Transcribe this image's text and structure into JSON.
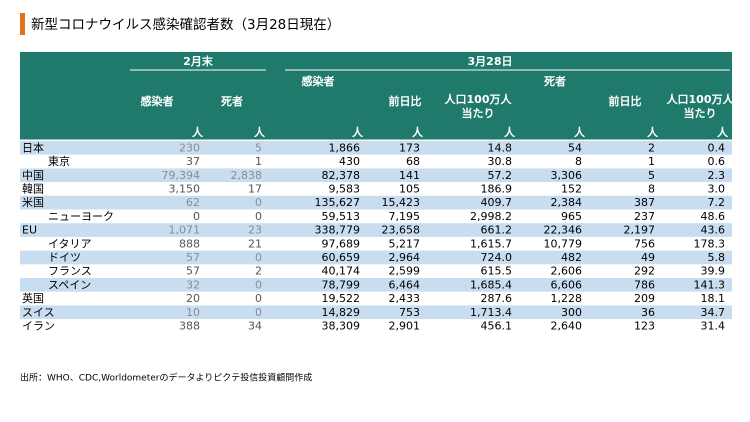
{
  "title": "新型コロナウイルス感染確認者数（3月28日現在）",
  "table": {
    "groups": [
      "2月末",
      "3月28日"
    ],
    "columns": [
      [
        "感染者"
      ],
      [
        "死者"
      ],
      [
        "感染者"
      ],
      [
        "前日比"
      ],
      [
        "人口100万人",
        "当たり"
      ],
      [
        "死者"
      ],
      [
        "前日比"
      ],
      [
        "人口100万人",
        "当たり"
      ]
    ],
    "unit": "人",
    "rows": [
      {
        "name": "日本",
        "cells": [
          "230",
          "5",
          "1,866",
          "173",
          "14.8",
          "54",
          "2",
          "0.4"
        ],
        "children": [
          {
            "name": "東京",
            "cells": [
              "37",
              "1",
              "430",
              "68",
              "30.8",
              "8",
              "1",
              "0.6"
            ]
          }
        ]
      },
      {
        "name": "中国",
        "cells": [
          "79,394",
          "2,838",
          "82,378",
          "141",
          "57.2",
          "3,306",
          "5",
          "2.3"
        ]
      },
      {
        "name": "韓国",
        "cells": [
          "3,150",
          "17",
          "9,583",
          "105",
          "186.9",
          "152",
          "8",
          "3.0"
        ]
      },
      {
        "name": "米国",
        "cells": [
          "62",
          "0",
          "135,627",
          "15,423",
          "409.7",
          "2,384",
          "387",
          "7.2"
        ],
        "children": [
          {
            "name": "ニューヨーク",
            "cells": [
              "0",
              "0",
              "59,513",
              "7,195",
              "2,998.2",
              "965",
              "237",
              "48.6"
            ]
          }
        ]
      },
      {
        "name": "EU",
        "cells": [
          "1,071",
          "23",
          "338,779",
          "23,658",
          "661.2",
          "22,346",
          "2,197",
          "43.6"
        ],
        "children": [
          {
            "name": "イタリア",
            "cells": [
              "888",
              "21",
              "97,689",
              "5,217",
              "1,615.7",
              "10,779",
              "756",
              "178.3"
            ]
          },
          {
            "name": "ドイツ",
            "cells": [
              "57",
              "0",
              "60,659",
              "2,964",
              "724.0",
              "482",
              "49",
              "5.8"
            ]
          },
          {
            "name": "フランス",
            "cells": [
              "57",
              "2",
              "40,174",
              "2,599",
              "615.5",
              "2,606",
              "292",
              "39.9"
            ]
          },
          {
            "name": "スペイン",
            "cells": [
              "32",
              "0",
              "78,799",
              "6,464",
              "1,685.4",
              "6,606",
              "786",
              "141.3"
            ]
          }
        ]
      },
      {
        "name": "英国",
        "cells": [
          "20",
          "0",
          "19,522",
          "2,433",
          "287.6",
          "1,228",
          "209",
          "18.1"
        ]
      },
      {
        "name": "スイス",
        "cells": [
          "10",
          "0",
          "14,829",
          "753",
          "1,713.4",
          "300",
          "36",
          "34.7"
        ]
      },
      {
        "name": "イラン",
        "cells": [
          "388",
          "34",
          "38,309",
          "2,901",
          "456.1",
          "2,640",
          "123",
          "31.4"
        ]
      }
    ]
  },
  "source": "出所：WHO、CDC,Worldometerのデータよりピクテ投信投資顧問作成"
}
